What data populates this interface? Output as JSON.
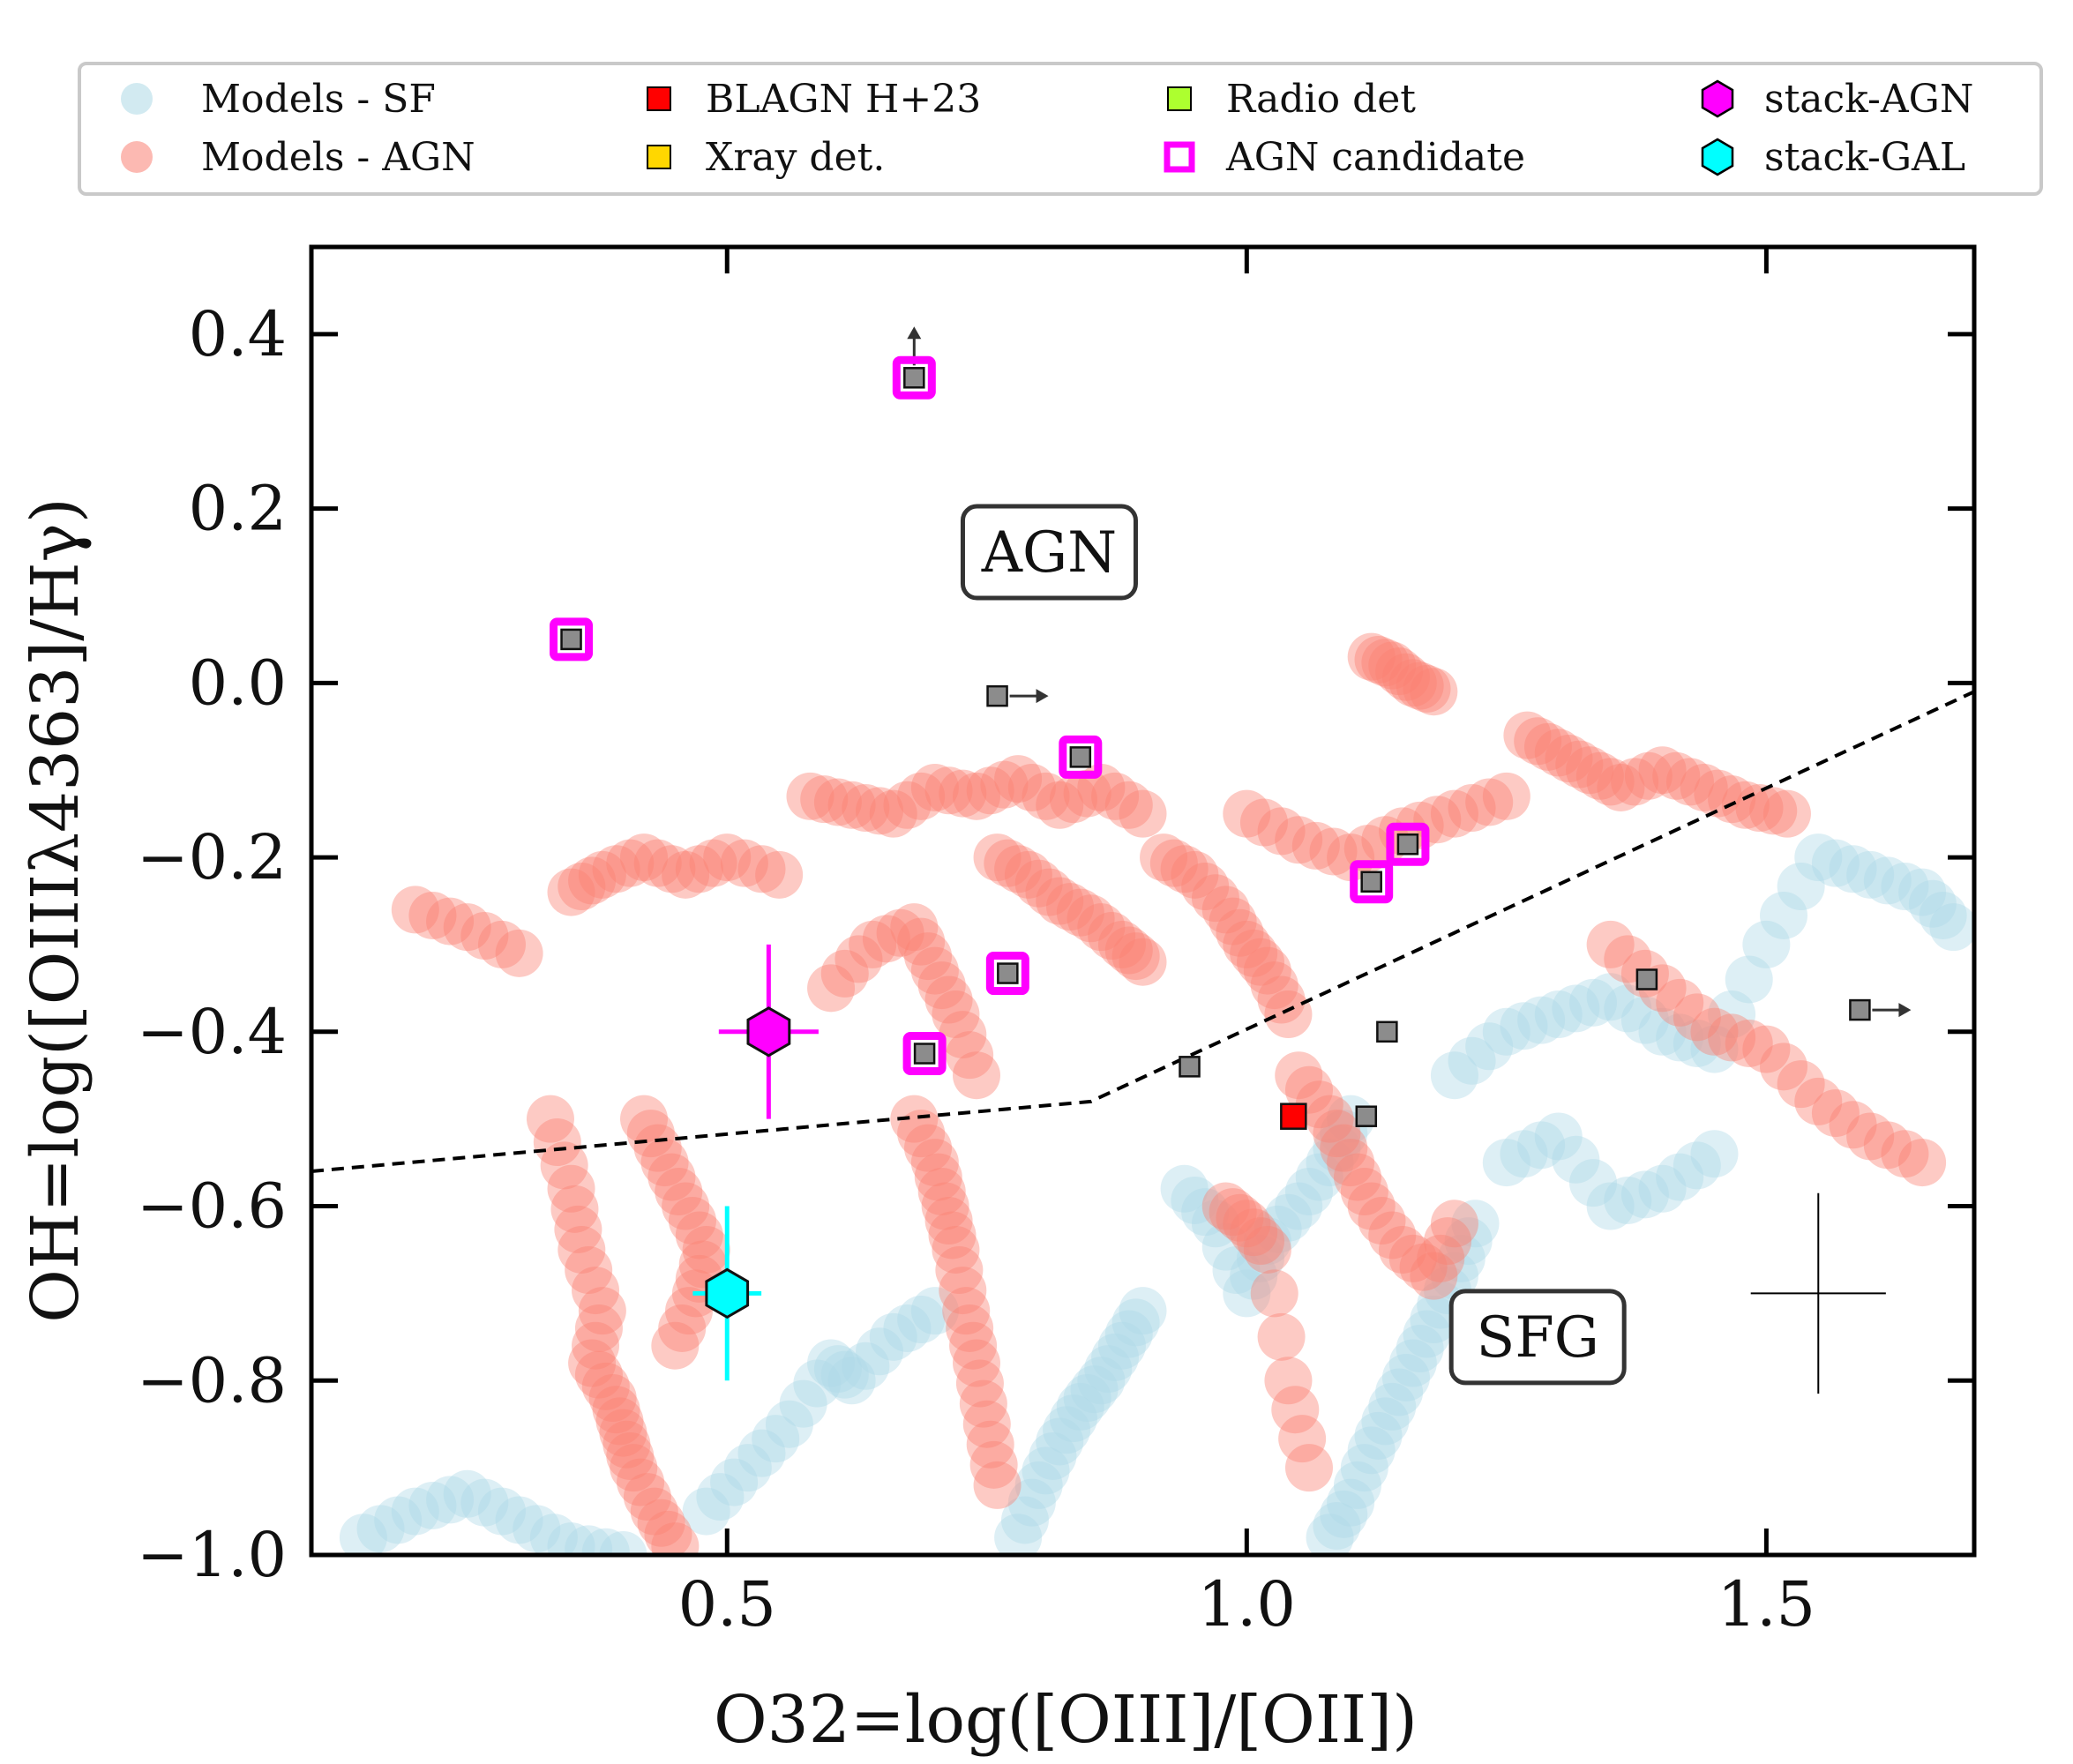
{
  "legend": {
    "items": [
      {
        "key": "models-sf",
        "label": "Models - SF",
        "color": "#add8e6",
        "marker": "circle"
      },
      {
        "key": "models-agn",
        "label": "Models - AGN",
        "color": "#fa8072",
        "marker": "circle"
      },
      {
        "key": "blagn",
        "label": "BLAGN H+23",
        "color": "#ff0000",
        "marker": "square"
      },
      {
        "key": "xray",
        "label": "Xray det.",
        "color": "#ffd700",
        "marker": "square"
      },
      {
        "key": "radio",
        "label": "Radio det",
        "color": "#adff2f",
        "marker": "square"
      },
      {
        "key": "agn-candidate",
        "label": "AGN candidate",
        "color": "#ff00ff",
        "marker": "open-square"
      },
      {
        "key": "stack-agn",
        "label": "stack-AGN",
        "color": "#ff00ff",
        "marker": "hexagon"
      },
      {
        "key": "stack-gal",
        "label": "stack-GAL",
        "color": "#00ffff",
        "marker": "hexagon"
      }
    ]
  },
  "chart_data": {
    "type": "scatter",
    "xlabel": "O32=log([OIII]/[OII])",
    "ylabel": "OH=log([OIIIλ4363]/Hγ)",
    "xlim": [
      0.1,
      1.7
    ],
    "ylim": [
      -1.0,
      0.5
    ],
    "xticks": [
      0.5,
      1.0,
      1.5
    ],
    "xtick_labels": [
      "0.5",
      "1.0",
      "1.5"
    ],
    "yticks": [
      -1.0,
      -0.8,
      -0.6,
      -0.4,
      -0.2,
      0.0,
      0.2,
      0.4
    ],
    "ytick_labels": [
      "−1.0",
      "−0.8",
      "−0.6",
      "−0.4",
      "−0.2",
      "0.0",
      "0.2",
      "0.4"
    ],
    "annotations": [
      {
        "text": "AGN",
        "x": 0.81,
        "y": 0.15
      },
      {
        "text": "SFG",
        "x": 1.28,
        "y": -0.75
      }
    ],
    "dividing_line": {
      "style": "dashed",
      "x": [
        0.1,
        0.85,
        1.7
      ],
      "y": [
        -0.56,
        -0.48,
        -0.01
      ]
    },
    "typical_error": {
      "x": 1.55,
      "y": -0.7,
      "xerr": 0.065,
      "yerr": 0.115
    },
    "models_sf_tracks": [
      {
        "x": [
          0.15,
          0.2,
          0.25,
          0.3,
          0.35,
          0.4
        ],
        "y": [
          -0.98,
          -0.95,
          -0.93,
          -0.96,
          -0.99,
          -1.0
        ]
      },
      {
        "x": [
          0.48,
          0.52,
          0.56,
          0.6,
          0.62,
          0.66,
          0.7
        ],
        "y": [
          -0.95,
          -0.9,
          -0.85,
          -0.78,
          -0.8,
          -0.75,
          -0.72
        ]
      },
      {
        "x": [
          0.78,
          0.8,
          0.82,
          0.84,
          0.86,
          0.88,
          0.9
        ],
        "y": [
          -0.98,
          -0.92,
          -0.87,
          -0.83,
          -0.8,
          -0.76,
          -0.72
        ]
      },
      {
        "x": [
          0.94,
          0.97,
          1.0,
          1.02,
          1.05,
          1.08,
          1.1
        ],
        "y": [
          -0.58,
          -0.62,
          -0.7,
          -0.64,
          -0.6,
          -0.55,
          -0.5
        ]
      },
      {
        "x": [
          1.08,
          1.1,
          1.12,
          1.14,
          1.16,
          1.18,
          1.2,
          1.22
        ],
        "y": [
          -0.98,
          -0.94,
          -0.88,
          -0.83,
          -0.78,
          -0.73,
          -0.68,
          -0.62
        ]
      },
      {
        "x": [
          1.2,
          1.25,
          1.3,
          1.35,
          1.4,
          1.45,
          1.5,
          1.55,
          1.6,
          1.65,
          1.68
        ],
        "y": [
          -0.45,
          -0.4,
          -0.38,
          -0.36,
          -0.4,
          -0.42,
          -0.3,
          -0.2,
          -0.22,
          -0.24,
          -0.28
        ]
      },
      {
        "x": [
          1.25,
          1.3,
          1.35,
          1.4,
          1.45
        ],
        "y": [
          -0.55,
          -0.52,
          -0.6,
          -0.58,
          -0.54
        ]
      }
    ],
    "models_agn_tracks": [
      {
        "x": [
          0.2,
          0.25,
          0.3
        ],
        "y": [
          -0.26,
          -0.28,
          -0.31
        ]
      },
      {
        "x": [
          0.35,
          0.38,
          0.42,
          0.46,
          0.5,
          0.55
        ],
        "y": [
          -0.24,
          -0.22,
          -0.2,
          -0.22,
          -0.2,
          -0.22
        ]
      },
      {
        "x": [
          0.33,
          0.35,
          0.36,
          0.38,
          0.37,
          0.39,
          0.4,
          0.41,
          0.43,
          0.45
        ],
        "y": [
          -0.5,
          -0.58,
          -0.65,
          -0.72,
          -0.78,
          -0.82,
          -0.86,
          -0.9,
          -0.95,
          -0.99
        ]
      },
      {
        "x": [
          0.42,
          0.44,
          0.46,
          0.48,
          0.47,
          0.45
        ],
        "y": [
          -0.5,
          -0.55,
          -0.6,
          -0.65,
          -0.7,
          -0.76
        ]
      },
      {
        "x": [
          0.58,
          0.62,
          0.66,
          0.7,
          0.74,
          0.78,
          0.82,
          0.86,
          0.9
        ],
        "y": [
          -0.13,
          -0.14,
          -0.15,
          -0.12,
          -0.13,
          -0.11,
          -0.14,
          -0.12,
          -0.15
        ]
      },
      {
        "x": [
          0.6,
          0.64,
          0.68,
          0.7,
          0.72,
          0.74
        ],
        "y": [
          -0.35,
          -0.3,
          -0.28,
          -0.33,
          -0.38,
          -0.45
        ]
      },
      {
        "x": [
          0.68,
          0.7,
          0.71,
          0.72,
          0.73,
          0.74,
          0.75,
          0.76
        ],
        "y": [
          -0.5,
          -0.55,
          -0.6,
          -0.65,
          -0.72,
          -0.78,
          -0.85,
          -0.92
        ]
      },
      {
        "x": [
          0.76,
          0.79,
          0.82,
          0.85,
          0.88,
          0.9
        ],
        "y": [
          -0.2,
          -0.22,
          -0.25,
          -0.27,
          -0.3,
          -0.32
        ]
      },
      {
        "x": [
          0.92,
          0.95,
          0.98,
          1.0,
          1.02,
          1.04
        ],
        "y": [
          -0.2,
          -0.22,
          -0.26,
          -0.3,
          -0.33,
          -0.38
        ]
      },
      {
        "x": [
          1.0,
          1.05,
          1.1,
          1.15,
          1.2,
          1.25
        ],
        "y": [
          -0.15,
          -0.18,
          -0.2,
          -0.17,
          -0.15,
          -0.13
        ]
      },
      {
        "x": [
          1.12,
          1.14,
          1.16,
          1.18
        ],
        "y": [
          0.03,
          0.02,
          0.0,
          -0.01
        ]
      },
      {
        "x": [
          1.27,
          1.3,
          1.33,
          1.36,
          1.4,
          1.44,
          1.48,
          1.52
        ],
        "y": [
          -0.06,
          -0.08,
          -0.1,
          -0.12,
          -0.1,
          -0.12,
          -0.14,
          -0.15
        ]
      },
      {
        "x": [
          1.05,
          1.08,
          1.1,
          1.12,
          1.15,
          1.18,
          1.2
        ],
        "y": [
          -0.45,
          -0.5,
          -0.55,
          -0.6,
          -0.65,
          -0.68,
          -0.62
        ]
      },
      {
        "x": [
          1.35,
          1.4,
          1.45,
          1.5,
          1.55,
          1.6,
          1.65
        ],
        "y": [
          -0.3,
          -0.35,
          -0.4,
          -0.42,
          -0.48,
          -0.52,
          -0.55
        ]
      },
      {
        "x": [
          0.98,
          1.0,
          1.02,
          1.04,
          1.06
        ],
        "y": [
          -0.6,
          -0.62,
          -0.65,
          -0.8,
          -0.9
        ]
      }
    ],
    "observed": [
      {
        "x": 0.68,
        "y": 0.35,
        "agn_candidate": true,
        "limit": "up"
      },
      {
        "x": 0.35,
        "y": 0.05,
        "agn_candidate": true
      },
      {
        "x": 0.76,
        "y": -0.015,
        "agn_candidate": false,
        "limit": "right"
      },
      {
        "x": 0.84,
        "y": -0.085,
        "agn_candidate": true
      },
      {
        "x": 1.155,
        "y": -0.185,
        "agn_candidate": true
      },
      {
        "x": 1.12,
        "y": -0.228,
        "agn_candidate": true
      },
      {
        "x": 0.77,
        "y": -0.333,
        "agn_candidate": true
      },
      {
        "x": 0.69,
        "y": -0.425,
        "agn_candidate": true
      },
      {
        "x": 0.945,
        "y": -0.44,
        "agn_candidate": false
      },
      {
        "x": 1.135,
        "y": -0.4,
        "agn_candidate": false
      },
      {
        "x": 1.115,
        "y": -0.497,
        "agn_candidate": false
      },
      {
        "x": 1.385,
        "y": -0.34,
        "agn_candidate": false
      },
      {
        "x": 1.59,
        "y": -0.375,
        "agn_candidate": false,
        "limit": "right"
      }
    ],
    "blagn": [
      {
        "x": 1.045,
        "y": -0.497
      }
    ],
    "stacks": [
      {
        "name": "stack-AGN",
        "x": 0.54,
        "y": -0.4,
        "xerr": 0.048,
        "yerr": 0.1,
        "color": "#ff00ff"
      },
      {
        "name": "stack-GAL",
        "x": 0.5,
        "y": -0.7,
        "xerr": 0.033,
        "yerr": 0.1,
        "color": "#00ffff"
      }
    ]
  }
}
